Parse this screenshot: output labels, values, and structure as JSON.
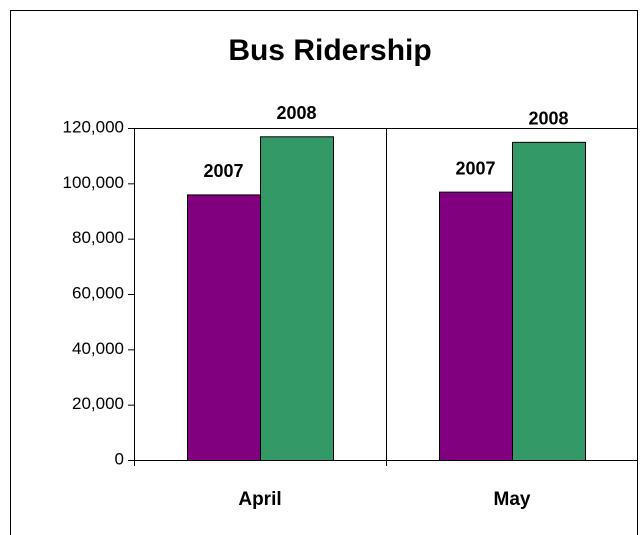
{
  "chart_data": {
    "type": "bar",
    "title": "Bus Ridership",
    "categories": [
      "April",
      "May"
    ],
    "series": [
      {
        "name": "2007",
        "color": "#800080",
        "values": [
          96000,
          97000
        ]
      },
      {
        "name": "2008",
        "color": "#339966",
        "values": [
          117000,
          115000
        ]
      }
    ],
    "ylim": [
      0,
      120000
    ],
    "yticks": [
      0,
      {
        "value": 20000,
        "label": "20,000"
      },
      {
        "value": 40000,
        "label": "40,000"
      },
      {
        "value": 60000,
        "label": "60,000"
      },
      {
        "value": 80000,
        "label": "80,000"
      },
      {
        "value": 100000,
        "label": "100,000"
      },
      {
        "value": 120000,
        "label": "120,000"
      }
    ]
  }
}
